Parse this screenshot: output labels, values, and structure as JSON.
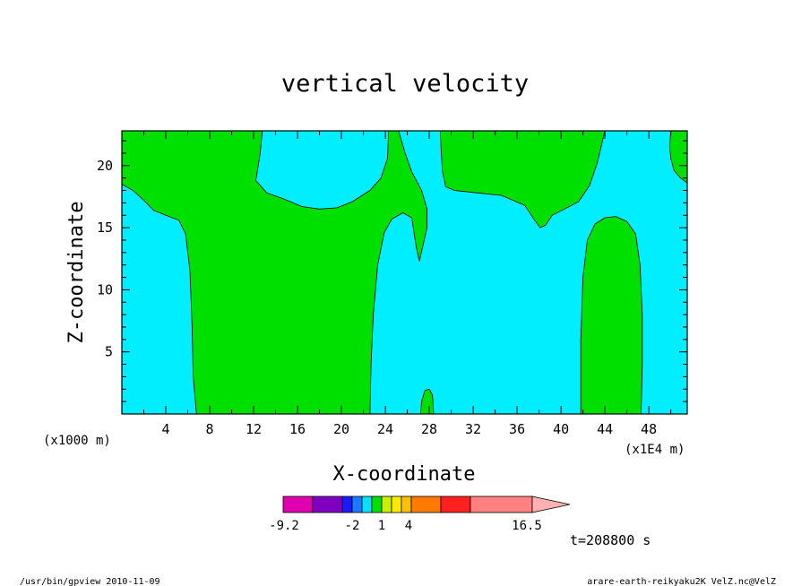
{
  "chart_data": {
    "type": "heatmap",
    "title": "vertical velocity",
    "xlabel": "X-coordinate",
    "ylabel": "Z-coordinate",
    "x_unit_left": "(x1000 m)",
    "x_unit_right": "(x1E4 m)",
    "xlim": [
      0,
      51.5
    ],
    "ylim": [
      0,
      22.8
    ],
    "x_ticks": [
      "4",
      "8",
      "12",
      "16",
      "20",
      "24",
      "28",
      "32",
      "36",
      "40",
      "44",
      "48"
    ],
    "y_ticks": [
      "5",
      "10",
      "15",
      "20"
    ],
    "colorbar": {
      "labels": [
        "-9.2",
        "-2",
        "1",
        "4",
        "16.5"
      ],
      "colors": [
        "#e000b0",
        "#8000c0",
        "#1a1aff",
        "#1e78ff",
        "#00e0ff",
        "#00e000",
        "#c8f000",
        "#ffe800",
        "#ffc000",
        "#ff7a00",
        "#ff2020",
        "#ff8080",
        "#ffb0b0"
      ]
    },
    "fill_colors": {
      "positive": "#00e000",
      "negative": "#00eeff"
    },
    "time_label": "t=208800 s",
    "green_regions": [
      [
        [
          0,
          22.8
        ],
        [
          12.8,
          22.8
        ],
        [
          12.6,
          21.0
        ],
        [
          12.2,
          18.8
        ],
        [
          13.2,
          17.8
        ],
        [
          14.8,
          17.3
        ],
        [
          16.4,
          16.7
        ],
        [
          18.0,
          16.5
        ],
        [
          19.6,
          16.6
        ],
        [
          21.0,
          17.1
        ],
        [
          22.6,
          18.0
        ],
        [
          23.6,
          19.0
        ],
        [
          24.2,
          20.6
        ],
        [
          24.3,
          22.8
        ],
        [
          25.2,
          22.8
        ],
        [
          25.8,
          21.0
        ],
        [
          26.4,
          19.5
        ],
        [
          27.3,
          18.0
        ],
        [
          27.8,
          16.5
        ],
        [
          27.8,
          15.0
        ],
        [
          27.1,
          12.3
        ],
        [
          26.8,
          13.5
        ],
        [
          26.4,
          15.8
        ],
        [
          25.6,
          16.2
        ],
        [
          24.6,
          15.7
        ],
        [
          23.9,
          14.6
        ],
        [
          23.3,
          12.0
        ],
        [
          22.9,
          8.0
        ],
        [
          22.7,
          4.0
        ],
        [
          22.6,
          0
        ],
        [
          6.8,
          0
        ],
        [
          6.5,
          3.0
        ],
        [
          6.4,
          7.0
        ],
        [
          6.2,
          11.5
        ],
        [
          5.8,
          14.5
        ],
        [
          5.2,
          15.6
        ],
        [
          4.0,
          16.0
        ],
        [
          2.9,
          16.4
        ],
        [
          2.0,
          17.2
        ],
        [
          1.0,
          18.0
        ],
        [
          0,
          18.5
        ]
      ],
      [
        [
          29.0,
          22.8
        ],
        [
          44.0,
          22.8
        ],
        [
          43.3,
          20.2
        ],
        [
          42.6,
          18.4
        ],
        [
          41.6,
          17.1
        ],
        [
          40.1,
          16.4
        ],
        [
          39.2,
          16.0
        ],
        [
          38.6,
          15.2
        ],
        [
          38.1,
          15.0
        ],
        [
          37.6,
          15.6
        ],
        [
          36.7,
          16.8
        ],
        [
          34.6,
          17.6
        ],
        [
          32.4,
          17.8
        ],
        [
          30.3,
          18.0
        ],
        [
          29.5,
          18.3
        ],
        [
          29.2,
          19.5
        ],
        [
          29.1,
          21.0
        ]
      ],
      [
        [
          50.0,
          22.8
        ],
        [
          51.5,
          22.8
        ],
        [
          51.5,
          18.6
        ],
        [
          50.9,
          19.0
        ],
        [
          50.3,
          19.6
        ],
        [
          50.0,
          20.6
        ],
        [
          49.9,
          21.5
        ]
      ],
      [
        [
          41.8,
          0
        ],
        [
          41.8,
          6.0
        ],
        [
          42.0,
          11.0
        ],
        [
          42.4,
          14.0
        ],
        [
          43.1,
          15.3
        ],
        [
          44.0,
          15.8
        ],
        [
          45.0,
          15.9
        ],
        [
          46.0,
          15.5
        ],
        [
          46.8,
          14.5
        ],
        [
          47.2,
          12.0
        ],
        [
          47.4,
          8.0
        ],
        [
          47.4,
          4.0
        ],
        [
          47.3,
          0
        ]
      ],
      [
        [
          27.2,
          0
        ],
        [
          27.3,
          1.0
        ],
        [
          27.6,
          1.9
        ],
        [
          28.0,
          2.0
        ],
        [
          28.3,
          1.5
        ],
        [
          28.4,
          0
        ]
      ]
    ]
  },
  "footer": {
    "left": "/usr/bin/gpview   2010-11-09",
    "right": "arare-earth-reikyaku2K_VelZ.nc@VelZ"
  }
}
